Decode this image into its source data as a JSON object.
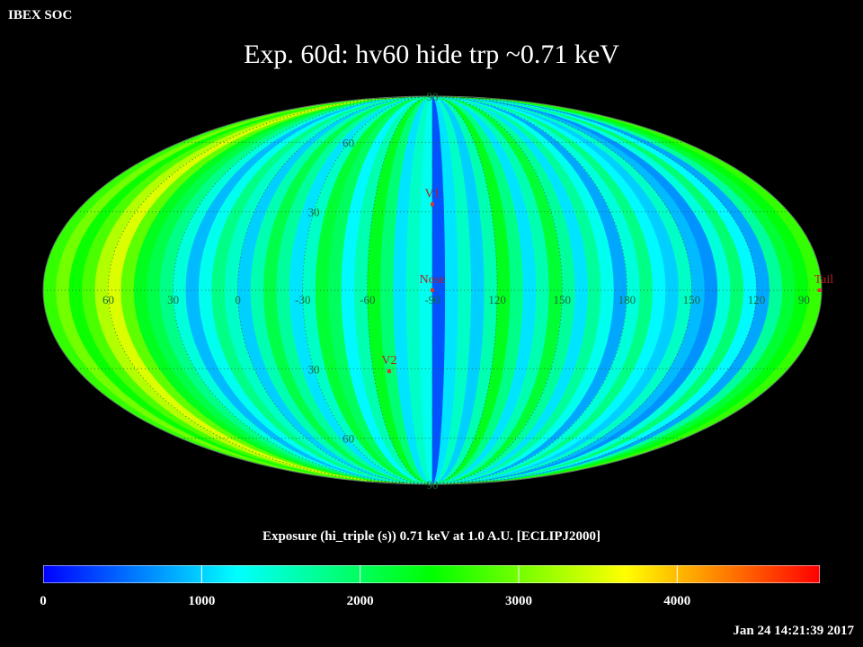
{
  "header": {
    "corner_label": "IBEX SOC",
    "title": "Exp.   60d: hv60 hide trp ~0.71 keV"
  },
  "colorbar": {
    "title": "Exposure (hi_triple (s))  0.71 keV at 1.0 A.U. [ECLIPJ2000]",
    "ticks": [
      "0",
      "1000",
      "2000",
      "3000",
      "4000"
    ],
    "range": [
      0,
      4900
    ],
    "colors": [
      "#0000ff",
      "#00ffff",
      "#00ff00",
      "#ffff00",
      "#ff0000"
    ]
  },
  "footer": {
    "timestamp": "Jan 24 14:21:39 2017"
  },
  "chart_data": {
    "type": "heatmap",
    "projection": "mollweide",
    "title": "Exp.   60d: hv60 hide trp ~0.71 keV",
    "value_label": "Exposure (hi_triple (s))  0.71 keV at 1.0 A.U. [ECLIPJ2000]",
    "value_range": [
      0,
      4900
    ],
    "longitude_labels": [
      "60",
      "30",
      "0",
      "-30",
      "-60",
      "-90",
      "120",
      "150",
      "180",
      "150",
      "120",
      "90"
    ],
    "latitude_labels": [
      "90",
      "60",
      "30",
      "30",
      "60",
      "90"
    ],
    "markers": [
      {
        "name": "V1",
        "lon": 0,
        "lat": 33,
        "color": "#e0352b"
      },
      {
        "name": "Nose",
        "lon": 0,
        "lat": 0,
        "color": "#e0352b"
      },
      {
        "name": "V2",
        "lon": -22,
        "lat": -31,
        "color": "#e0352b"
      },
      {
        "name": "Tail",
        "lon": 180,
        "lat": 0,
        "color": "#e0352b"
      }
    ],
    "strip_exposure_by_longitude_offset": [
      {
        "lon": -180,
        "value": 2700
      },
      {
        "lon": -174,
        "value": 3000
      },
      {
        "lon": -168,
        "value": 2500
      },
      {
        "lon": -162,
        "value": 2800
      },
      {
        "lon": -156,
        "value": 3300
      },
      {
        "lon": -150,
        "value": 3500
      },
      {
        "lon": -144,
        "value": 2900
      },
      {
        "lon": -138,
        "value": 2300
      },
      {
        "lon": -132,
        "value": 2100
      },
      {
        "lon": -126,
        "value": 1800
      },
      {
        "lon": -120,
        "value": 1400
      },
      {
        "lon": -114,
        "value": 900
      },
      {
        "lon": -108,
        "value": 1300
      },
      {
        "lon": -102,
        "value": 1800
      },
      {
        "lon": -96,
        "value": 1500
      },
      {
        "lon": -90,
        "value": 1000
      },
      {
        "lon": -84,
        "value": 1600
      },
      {
        "lon": -78,
        "value": 2100
      },
      {
        "lon": -72,
        "value": 1700
      },
      {
        "lon": -66,
        "value": 1100
      },
      {
        "lon": -60,
        "value": 1500
      },
      {
        "lon": -54,
        "value": 2200
      },
      {
        "lon": -48,
        "value": 2000
      },
      {
        "lon": -42,
        "value": 1200
      },
      {
        "lon": -36,
        "value": 1600
      },
      {
        "lon": -30,
        "value": 2300
      },
      {
        "lon": -24,
        "value": 1900
      },
      {
        "lon": -18,
        "value": 1100
      },
      {
        "lon": -12,
        "value": 1500
      },
      {
        "lon": -6,
        "value": 1300
      },
      {
        "lon": 0,
        "value": 400
      },
      {
        "lon": 6,
        "value": 1100
      },
      {
        "lon": 12,
        "value": 1500
      },
      {
        "lon": 18,
        "value": 1000
      },
      {
        "lon": 24,
        "value": 1600
      },
      {
        "lon": 30,
        "value": 2300
      },
      {
        "lon": 36,
        "value": 1800
      },
      {
        "lon": 42,
        "value": 1100
      },
      {
        "lon": 48,
        "value": 1600
      },
      {
        "lon": 54,
        "value": 2200
      },
      {
        "lon": 60,
        "value": 1700
      },
      {
        "lon": 66,
        "value": 1100
      },
      {
        "lon": 72,
        "value": 1700
      },
      {
        "lon": 78,
        "value": 1300
      },
      {
        "lon": 84,
        "value": 800
      },
      {
        "lon": 90,
        "value": 1400
      },
      {
        "lon": 96,
        "value": 1800
      },
      {
        "lon": 102,
        "value": 1200
      },
      {
        "lon": 108,
        "value": 1000
      },
      {
        "lon": 114,
        "value": 1500
      },
      {
        "lon": 120,
        "value": 900
      },
      {
        "lon": 126,
        "value": 700
      },
      {
        "lon": 132,
        "value": 1400
      },
      {
        "lon": 138,
        "value": 1900
      },
      {
        "lon": 144,
        "value": 1200
      },
      {
        "lon": 150,
        "value": 800
      },
      {
        "lon": 156,
        "value": 1700
      },
      {
        "lon": 162,
        "value": 2200
      },
      {
        "lon": 168,
        "value": 2400
      },
      {
        "lon": 174,
        "value": 2700
      }
    ]
  }
}
